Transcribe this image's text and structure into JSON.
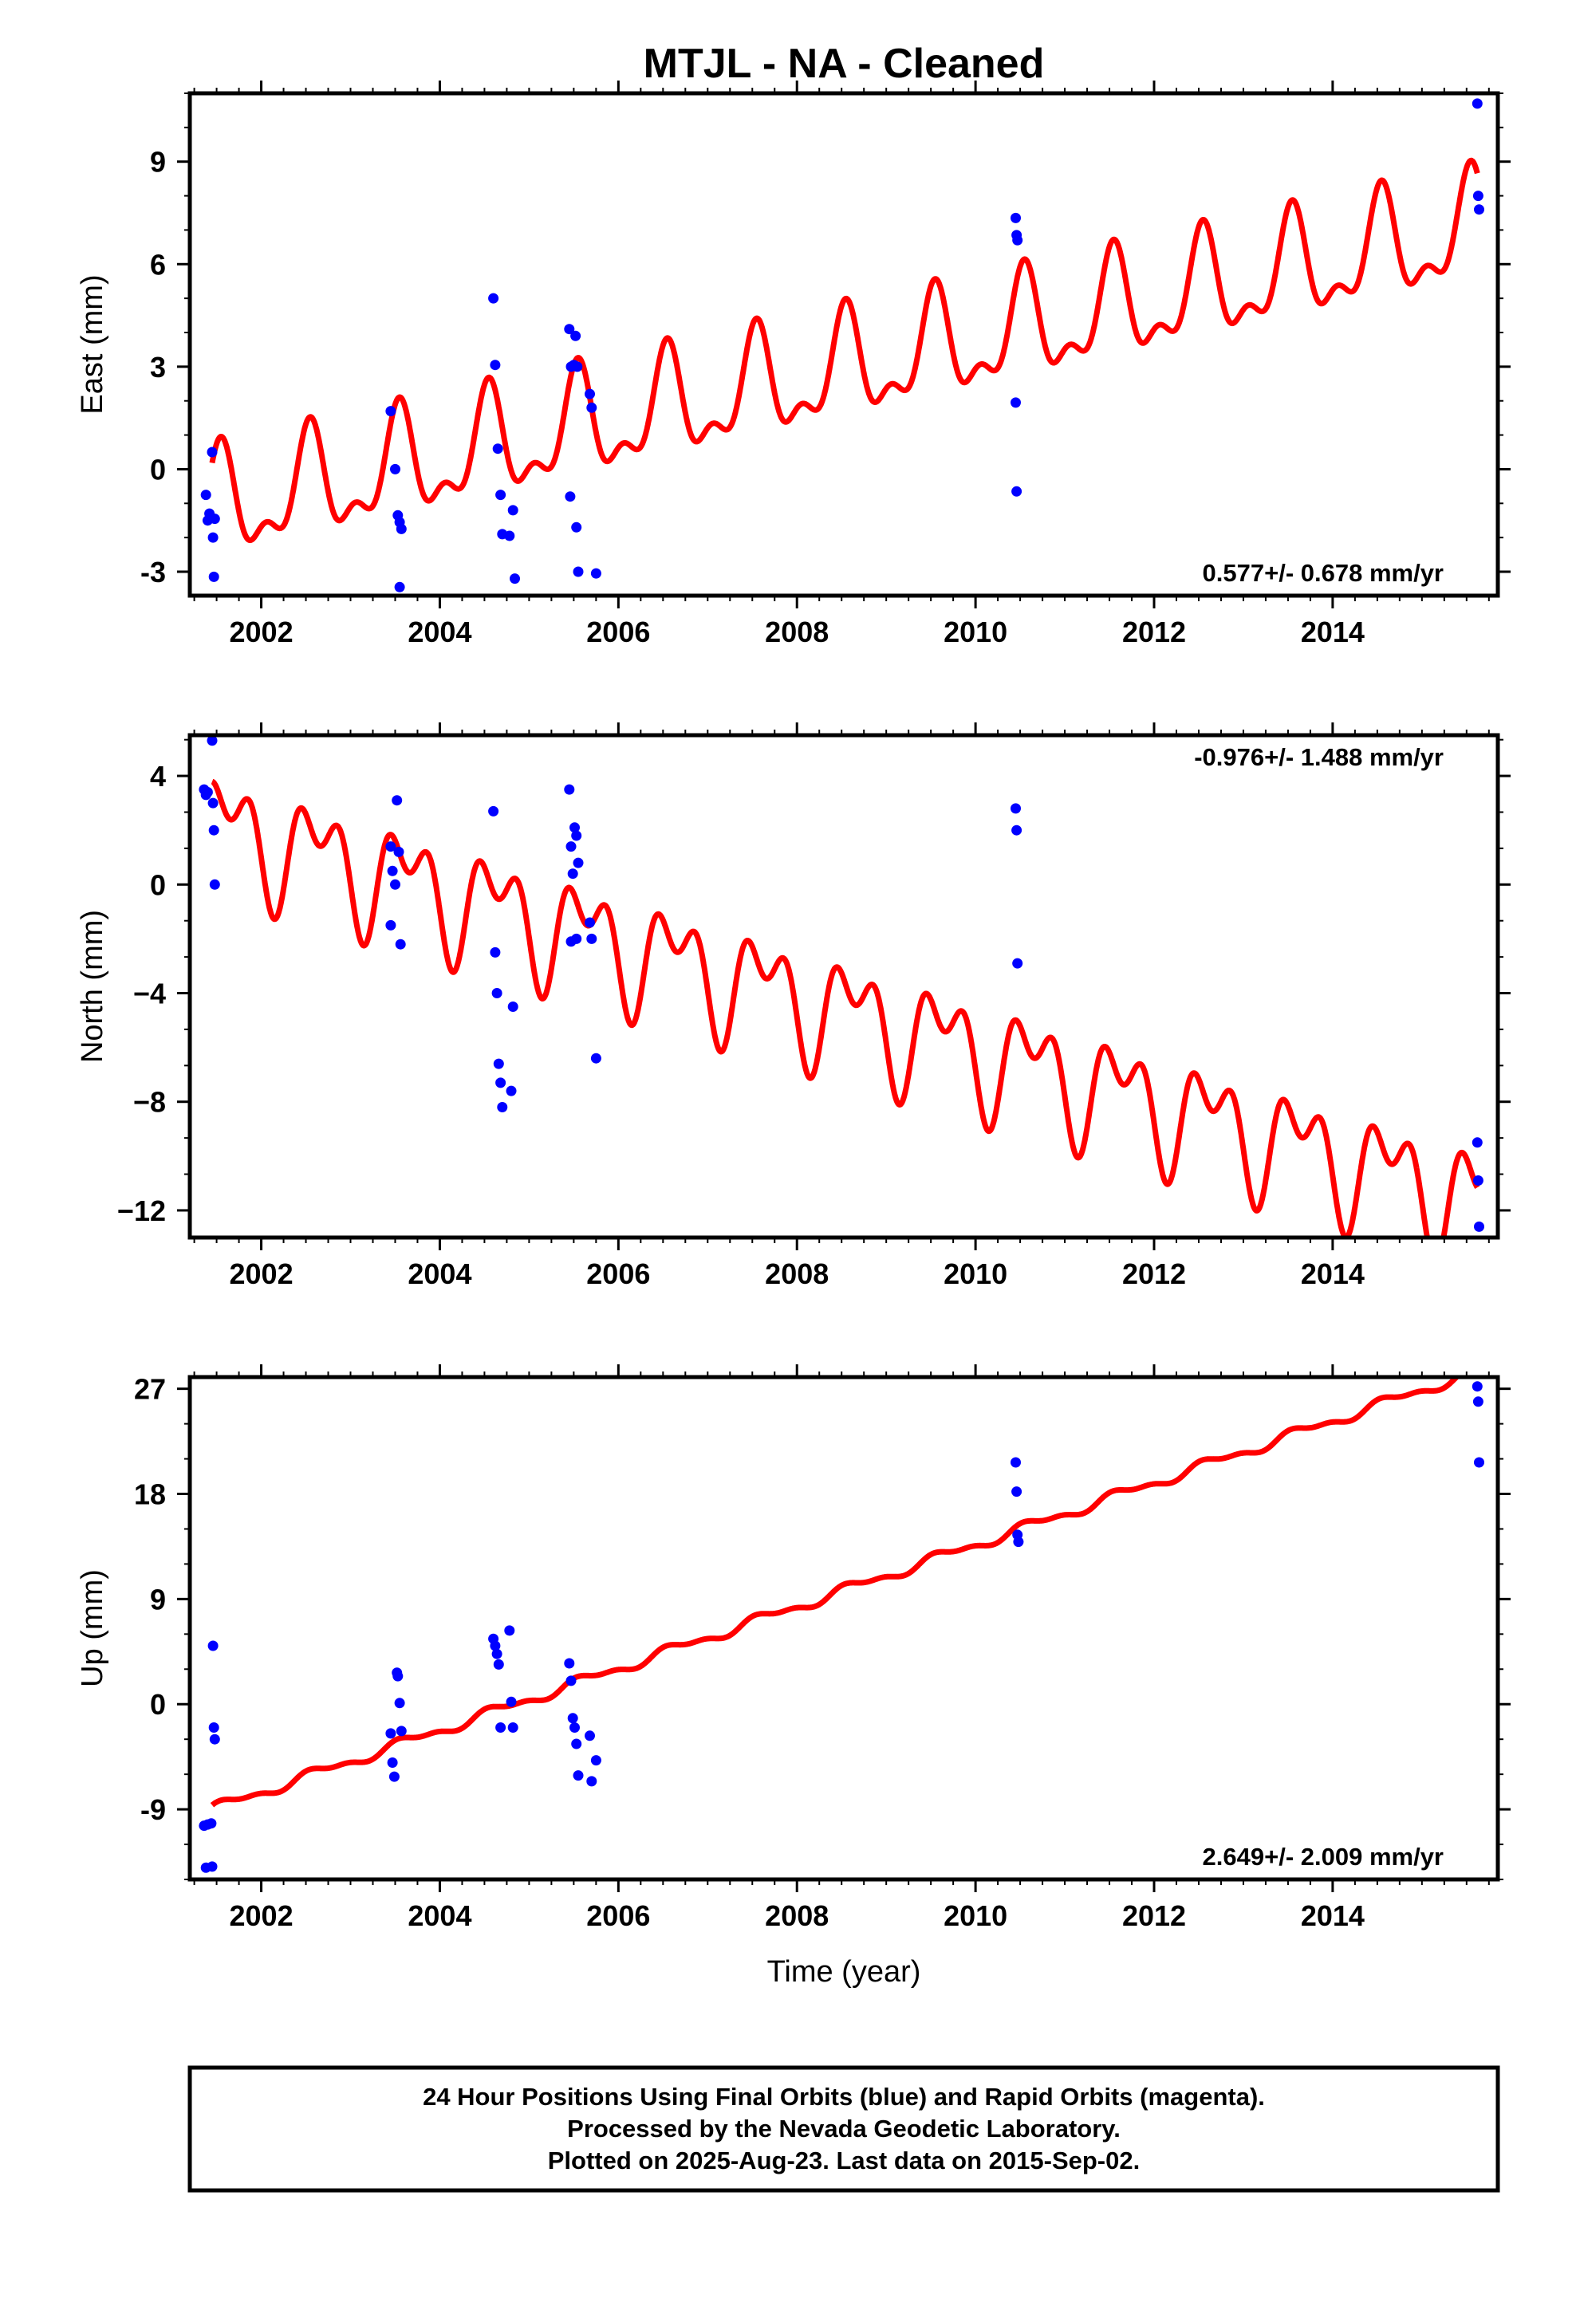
{
  "title": "MTJL  - NA - Cleaned",
  "colors": {
    "final_orbits": "#0000ff",
    "model": "#ff0000",
    "frame": "#000000"
  },
  "chart_data": [
    {
      "type": "scatter",
      "component": "east",
      "ylabel": "East (mm)",
      "xlabel": "",
      "xlim": [
        2001.2,
        2015.85
      ],
      "ylim": [
        -3.7,
        11.0
      ],
      "xticks": [
        2002,
        2004,
        2006,
        2008,
        2010,
        2012,
        2014
      ],
      "yticks": [
        -3,
        0,
        3,
        6,
        9
      ],
      "rate_label": "0.577+/- 0.678 mm/yr",
      "rate_position": "bottom-right",
      "model": {
        "intercept": -1.2,
        "slope": 0.577,
        "t0": 2001.45,
        "annual_amp": 1.4,
        "annual_phase": 1.0,
        "semiannual_amp": 0.7,
        "semiannual_phase": 0.3
      },
      "points": [
        {
          "x": 2001.38,
          "y": -0.75
        },
        {
          "x": 2001.4,
          "y": -1.5
        },
        {
          "x": 2001.42,
          "y": -1.3
        },
        {
          "x": 2001.45,
          "y": 0.5
        },
        {
          "x": 2001.46,
          "y": -2.0
        },
        {
          "x": 2001.47,
          "y": -3.15
        },
        {
          "x": 2001.48,
          "y": -1.45
        },
        {
          "x": 2003.45,
          "y": 1.7
        },
        {
          "x": 2003.5,
          "y": 0.0
        },
        {
          "x": 2003.53,
          "y": -1.35
        },
        {
          "x": 2003.55,
          "y": -1.55
        },
        {
          "x": 2003.57,
          "y": -1.75
        },
        {
          "x": 2003.55,
          "y": -3.45
        },
        {
          "x": 2004.6,
          "y": 5.0
        },
        {
          "x": 2004.62,
          "y": 3.05
        },
        {
          "x": 2004.65,
          "y": 0.6
        },
        {
          "x": 2004.68,
          "y": -0.75
        },
        {
          "x": 2004.7,
          "y": -1.9
        },
        {
          "x": 2004.78,
          "y": -1.95
        },
        {
          "x": 2004.82,
          "y": -1.2
        },
        {
          "x": 2004.84,
          "y": -3.2
        },
        {
          "x": 2005.45,
          "y": 4.1
        },
        {
          "x": 2005.47,
          "y": 3.0
        },
        {
          "x": 2005.5,
          "y": 3.05
        },
        {
          "x": 2005.52,
          "y": 3.9
        },
        {
          "x": 2005.54,
          "y": 3.0
        },
        {
          "x": 2005.46,
          "y": -0.8
        },
        {
          "x": 2005.53,
          "y": -1.7
        },
        {
          "x": 2005.55,
          "y": -3.0
        },
        {
          "x": 2005.68,
          "y": 2.2
        },
        {
          "x": 2005.7,
          "y": 1.8
        },
        {
          "x": 2005.75,
          "y": -3.05
        },
        {
          "x": 2010.45,
          "y": 7.35
        },
        {
          "x": 2010.46,
          "y": 6.85
        },
        {
          "x": 2010.47,
          "y": 6.7
        },
        {
          "x": 2010.45,
          "y": 1.95
        },
        {
          "x": 2010.46,
          "y": -0.65
        },
        {
          "x": 2015.62,
          "y": 10.7
        },
        {
          "x": 2015.63,
          "y": 8.0
        },
        {
          "x": 2015.64,
          "y": 7.6
        }
      ]
    },
    {
      "type": "scatter",
      "component": "north",
      "ylabel": "North (mm)",
      "xlabel": "",
      "xlim": [
        2001.2,
        2015.85
      ],
      "ylim": [
        -13.0,
        5.5
      ],
      "xticks": [
        2002,
        2004,
        2006,
        2008,
        2010,
        2012,
        2014
      ],
      "yticks": [
        -12,
        -8,
        -4,
        0,
        4
      ],
      "ytick_labels": [
        "−12",
        "−8",
        "−4",
        "0",
        "4"
      ],
      "rate_label": "-0.976+/- 1.488 mm/yr",
      "rate_position": "top-right",
      "model": {
        "intercept": 2.2,
        "slope": -0.976,
        "t0": 2001.45,
        "annual_amp": 1.6,
        "annual_phase": 0.4,
        "semiannual_amp": 1.2,
        "semiannual_phase": 2.2
      },
      "points": [
        {
          "x": 2001.36,
          "y": 3.5
        },
        {
          "x": 2001.38,
          "y": 3.3
        },
        {
          "x": 2001.4,
          "y": 3.4
        },
        {
          "x": 2001.45,
          "y": 5.3
        },
        {
          "x": 2001.46,
          "y": 3.0
        },
        {
          "x": 2001.47,
          "y": 2.0
        },
        {
          "x": 2001.48,
          "y": 0.0
        },
        {
          "x": 2003.45,
          "y": 1.4
        },
        {
          "x": 2003.47,
          "y": 0.5
        },
        {
          "x": 2003.5,
          "y": 0.0
        },
        {
          "x": 2003.52,
          "y": 3.1
        },
        {
          "x": 2003.54,
          "y": 1.2
        },
        {
          "x": 2003.45,
          "y": -1.5
        },
        {
          "x": 2003.56,
          "y": -2.2
        },
        {
          "x": 2004.6,
          "y": 2.7
        },
        {
          "x": 2004.62,
          "y": -2.5
        },
        {
          "x": 2004.64,
          "y": -4.0
        },
        {
          "x": 2004.66,
          "y": -6.6
        },
        {
          "x": 2004.68,
          "y": -7.3
        },
        {
          "x": 2004.7,
          "y": -8.2
        },
        {
          "x": 2004.8,
          "y": -7.6
        },
        {
          "x": 2004.82,
          "y": -4.5
        },
        {
          "x": 2005.45,
          "y": 3.5
        },
        {
          "x": 2005.47,
          "y": 1.4
        },
        {
          "x": 2005.49,
          "y": 0.4
        },
        {
          "x": 2005.51,
          "y": 2.1
        },
        {
          "x": 2005.53,
          "y": 1.8
        },
        {
          "x": 2005.55,
          "y": 0.8
        },
        {
          "x": 2005.47,
          "y": -2.1
        },
        {
          "x": 2005.53,
          "y": -2.0
        },
        {
          "x": 2005.68,
          "y": -1.4
        },
        {
          "x": 2005.7,
          "y": -2.0
        },
        {
          "x": 2005.75,
          "y": -6.4
        },
        {
          "x": 2010.45,
          "y": 2.8
        },
        {
          "x": 2010.46,
          "y": 2.0
        },
        {
          "x": 2010.47,
          "y": -2.9
        },
        {
          "x": 2015.62,
          "y": -9.5
        },
        {
          "x": 2015.63,
          "y": -10.9
        },
        {
          "x": 2015.64,
          "y": -12.6
        }
      ]
    },
    {
      "type": "scatter",
      "component": "up",
      "ylabel": "Up (mm)",
      "xlabel": "Time (year)",
      "xlim": [
        2001.2,
        2015.85
      ],
      "ylim": [
        -15.0,
        28.0
      ],
      "xticks": [
        2002,
        2004,
        2006,
        2008,
        2010,
        2012,
        2014
      ],
      "yticks": [
        -9,
        0,
        9,
        18,
        27
      ],
      "rate_label": "2.649+/- 2.009 mm/yr",
      "rate_position": "bottom-right",
      "model": {
        "intercept": -9.0,
        "slope": 2.649,
        "t0": 2001.45,
        "annual_amp": 0.4,
        "annual_phase": 0.5,
        "semiannual_amp": 0.2,
        "semiannual_phase": 1.0
      },
      "points": [
        {
          "x": 2001.36,
          "y": -10.4
        },
        {
          "x": 2001.38,
          "y": -14.0
        },
        {
          "x": 2001.4,
          "y": -10.3
        },
        {
          "x": 2001.44,
          "y": -10.2
        },
        {
          "x": 2001.45,
          "y": -13.9
        },
        {
          "x": 2001.46,
          "y": 5.0
        },
        {
          "x": 2001.47,
          "y": -2.0
        },
        {
          "x": 2001.48,
          "y": -3.0
        },
        {
          "x": 2003.45,
          "y": -2.5
        },
        {
          "x": 2003.47,
          "y": -5.0
        },
        {
          "x": 2003.49,
          "y": -6.2
        },
        {
          "x": 2003.52,
          "y": 2.7
        },
        {
          "x": 2003.53,
          "y": 2.4
        },
        {
          "x": 2003.55,
          "y": 0.1
        },
        {
          "x": 2003.57,
          "y": -2.3
        },
        {
          "x": 2004.6,
          "y": 5.6
        },
        {
          "x": 2004.62,
          "y": 5.0
        },
        {
          "x": 2004.64,
          "y": 4.3
        },
        {
          "x": 2004.66,
          "y": 3.4
        },
        {
          "x": 2004.68,
          "y": -2.0
        },
        {
          "x": 2004.78,
          "y": 6.3
        },
        {
          "x": 2004.8,
          "y": 0.2
        },
        {
          "x": 2004.82,
          "y": -2.0
        },
        {
          "x": 2005.45,
          "y": 3.5
        },
        {
          "x": 2005.47,
          "y": 2.0
        },
        {
          "x": 2005.49,
          "y": -1.2
        },
        {
          "x": 2005.51,
          "y": -2.0
        },
        {
          "x": 2005.53,
          "y": -3.4
        },
        {
          "x": 2005.55,
          "y": -6.1
        },
        {
          "x": 2005.68,
          "y": -2.7
        },
        {
          "x": 2005.7,
          "y": -6.6
        },
        {
          "x": 2005.75,
          "y": -4.8
        },
        {
          "x": 2010.45,
          "y": 20.7
        },
        {
          "x": 2010.46,
          "y": 18.2
        },
        {
          "x": 2010.47,
          "y": 14.5
        },
        {
          "x": 2010.48,
          "y": 13.9
        },
        {
          "x": 2015.62,
          "y": 27.2
        },
        {
          "x": 2015.63,
          "y": 25.9
        },
        {
          "x": 2015.64,
          "y": 20.7
        }
      ]
    }
  ],
  "footer": {
    "line1": "24 Hour Positions Using Final Orbits (blue) and Rapid Orbits (magenta).",
    "line2": "Processed by the Nevada Geodetic Laboratory.",
    "line3": "Plotted on 2025-Aug-23. Last data on 2015-Sep-02."
  }
}
